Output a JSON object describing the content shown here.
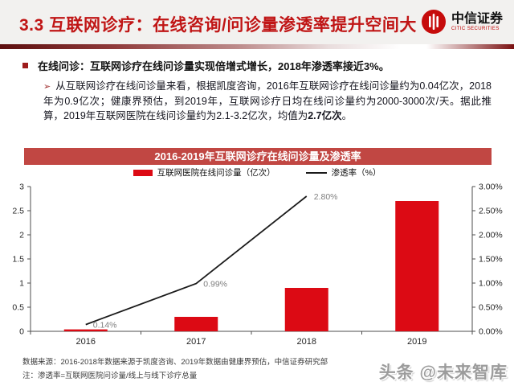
{
  "header": {
    "title": "3.3 互联网诊疗：在线咨询/问诊量渗透率提升空间大",
    "logo": {
      "name_cn": "中信证券",
      "name_en": "CITIC SECURITIES"
    }
  },
  "bullets": {
    "main": "在线问诊：互联网诊疗在线问诊量实现倍增式增长，2018年渗透率接近3%。",
    "sub_marker": "➢",
    "sub_before": "从互联网诊疗在线问诊量来看，根据凯度咨询，2016年互联网诊疗在线问诊量约为0.04亿次，2018年为0.9亿次；健康界预估，到2019年，互联网诊疗日均在线问诊量约为2000-3000次/天。据此推算，2019年互联网医院在线问诊量约为2.1-3.2亿次，均值为",
    "sub_bold": "2.7亿次",
    "sub_after": "。"
  },
  "chart_data": {
    "type": "bar",
    "title": "2016-2019年互联网诊疗在线问诊量及渗透率",
    "categories": [
      "2016",
      "2017",
      "2018",
      "2019"
    ],
    "series": [
      {
        "name": "互联网医院在线问诊量（亿次）",
        "type": "bar",
        "axis": "left",
        "values": [
          0.04,
          0.3,
          0.9,
          2.7
        ],
        "color": "#dc0a14"
      },
      {
        "name": "渗透率（%）",
        "type": "line",
        "axis": "right",
        "values": [
          0.14,
          0.99,
          2.8,
          null
        ],
        "labels": [
          "0.14%",
          "0.99%",
          "2.80%",
          null
        ],
        "color": "#1a1a1a"
      }
    ],
    "left_axis": {
      "min": 0,
      "max": 3,
      "step": 0.5,
      "ticks": [
        "3",
        "2.5",
        "2",
        "1.5",
        "1",
        "0.5",
        "0"
      ]
    },
    "right_axis": {
      "min": 0,
      "max": 3,
      "step": 0.5,
      "ticks": [
        "3.00%",
        "2.50%",
        "2.00%",
        "1.50%",
        "1.00%",
        "0.50%",
        "0.00%"
      ]
    },
    "legend_position": "top",
    "grid": false
  },
  "footer": {
    "source": "数据来源：2016-2018年数据来源于凯度咨询、2019年数据由健康界预估，中信证券研究部",
    "note": "注：渗透率=互联网医院问诊量/线上与线下诊疗总量"
  },
  "watermark": "头条 @未来智库",
  "colors": {
    "accent": "#c01515",
    "bar": "#dc0a14",
    "chart_title_bg": "#c14743",
    "line": "#1a1a1a"
  }
}
